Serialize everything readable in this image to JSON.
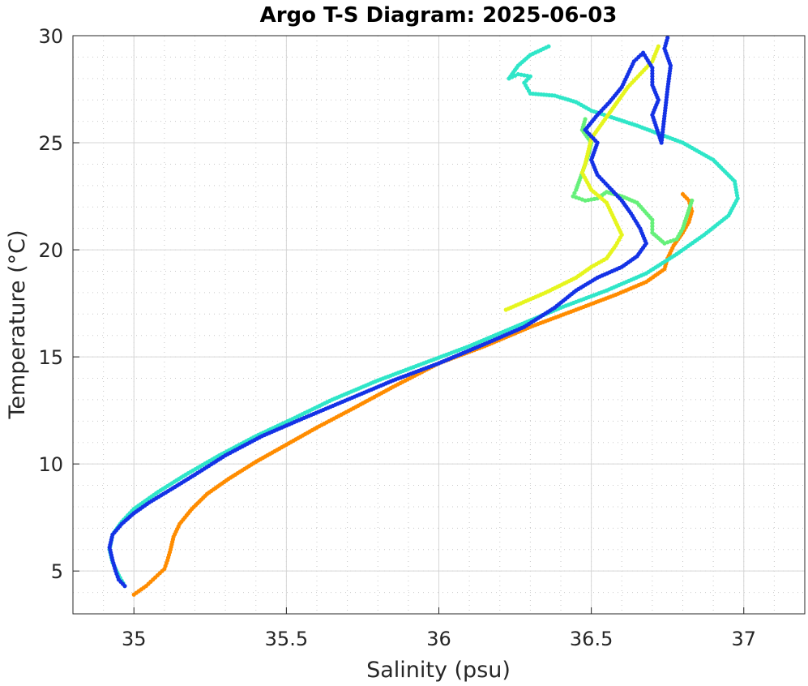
{
  "chart_data": {
    "type": "scatter",
    "title": "Argo T-S Diagram: 2025-06-03",
    "xlabel": "Salinity (psu)",
    "ylabel": "Temperature (°C)",
    "xlim": [
      34.8,
      37.2
    ],
    "ylim": [
      3,
      30
    ],
    "x_ticks": [
      35,
      35.5,
      36,
      36.5,
      37
    ],
    "x_tick_labels": [
      "35",
      "35.5",
      "36",
      "36.5",
      "37"
    ],
    "y_ticks": [
      5,
      10,
      15,
      20,
      25,
      30
    ],
    "y_tick_labels": [
      "5",
      "10",
      "15",
      "20",
      "25",
      "30"
    ],
    "x_minor_step": 0.1,
    "y_minor_step": 1,
    "grid": true,
    "minor_grid": true,
    "legend": "none",
    "series": [
      {
        "color": "#ff8c00",
        "points": [
          [
            35.0,
            3.9
          ],
          [
            35.04,
            4.3
          ],
          [
            35.07,
            4.7
          ],
          [
            35.1,
            5.1
          ],
          [
            35.11,
            5.5
          ],
          [
            35.12,
            6.0
          ],
          [
            35.13,
            6.6
          ],
          [
            35.15,
            7.2
          ],
          [
            35.19,
            7.9
          ],
          [
            35.24,
            8.6
          ],
          [
            35.31,
            9.3
          ],
          [
            35.4,
            10.1
          ],
          [
            35.5,
            10.9
          ],
          [
            35.6,
            11.7
          ],
          [
            35.72,
            12.6
          ],
          [
            35.85,
            13.6
          ],
          [
            36.0,
            14.7
          ],
          [
            36.15,
            15.5
          ],
          [
            36.3,
            16.4
          ],
          [
            36.45,
            17.2
          ],
          [
            36.58,
            17.9
          ],
          [
            36.68,
            18.5
          ],
          [
            36.74,
            19.1
          ],
          [
            36.75,
            19.6
          ],
          [
            36.77,
            20.2
          ],
          [
            36.8,
            20.8
          ],
          [
            36.82,
            21.3
          ],
          [
            36.83,
            21.8
          ],
          [
            36.82,
            22.3
          ],
          [
            36.8,
            22.6
          ]
        ]
      },
      {
        "color": "#2fe6c8",
        "points": [
          [
            34.97,
            4.3
          ],
          [
            34.95,
            4.8
          ],
          [
            34.93,
            5.4
          ],
          [
            34.92,
            6.0
          ],
          [
            34.93,
            6.7
          ],
          [
            34.96,
            7.3
          ],
          [
            35.0,
            7.9
          ],
          [
            35.08,
            8.7
          ],
          [
            35.17,
            9.5
          ],
          [
            35.28,
            10.4
          ],
          [
            35.4,
            11.3
          ],
          [
            35.52,
            12.1
          ],
          [
            35.65,
            13.0
          ],
          [
            35.8,
            13.9
          ],
          [
            35.95,
            14.7
          ],
          [
            36.1,
            15.5
          ],
          [
            36.25,
            16.4
          ],
          [
            36.4,
            17.3
          ],
          [
            36.55,
            18.1
          ],
          [
            36.68,
            18.9
          ],
          [
            36.78,
            19.8
          ],
          [
            36.87,
            20.7
          ],
          [
            36.95,
            21.6
          ],
          [
            36.98,
            22.4
          ],
          [
            36.97,
            23.2
          ],
          [
            36.9,
            24.2
          ],
          [
            36.8,
            25.0
          ],
          [
            36.65,
            25.8
          ],
          [
            36.5,
            26.5
          ],
          [
            36.45,
            26.9
          ],
          [
            36.38,
            27.2
          ],
          [
            36.3,
            27.3
          ],
          [
            36.28,
            27.8
          ],
          [
            36.3,
            28.1
          ],
          [
            36.26,
            28.2
          ],
          [
            36.23,
            28.0
          ],
          [
            36.26,
            28.6
          ],
          [
            36.3,
            29.1
          ],
          [
            36.36,
            29.5
          ]
        ]
      },
      {
        "color": "#66f07a",
        "points": [
          [
            36.48,
            26.1
          ],
          [
            36.47,
            25.6
          ],
          [
            36.5,
            25.0
          ],
          [
            36.49,
            24.4
          ],
          [
            36.47,
            23.6
          ],
          [
            36.45,
            22.8
          ],
          [
            36.44,
            22.5
          ],
          [
            36.48,
            22.3
          ],
          [
            36.52,
            22.4
          ],
          [
            36.55,
            22.7
          ],
          [
            36.6,
            22.5
          ],
          [
            36.65,
            22.2
          ],
          [
            36.7,
            21.4
          ],
          [
            36.7,
            20.8
          ],
          [
            36.74,
            20.3
          ],
          [
            36.78,
            20.5
          ],
          [
            36.8,
            21.0
          ],
          [
            36.83,
            22.3
          ]
        ]
      },
      {
        "color": "#e6f51e",
        "points": [
          [
            36.72,
            29.5
          ],
          [
            36.7,
            28.8
          ],
          [
            36.66,
            28.2
          ],
          [
            36.62,
            27.6
          ],
          [
            36.5,
            25.2
          ],
          [
            36.48,
            24.0
          ],
          [
            36.47,
            23.6
          ],
          [
            36.5,
            22.8
          ],
          [
            36.55,
            22.2
          ],
          [
            36.6,
            20.7
          ],
          [
            36.58,
            20.2
          ],
          [
            36.55,
            19.6
          ],
          [
            36.5,
            19.2
          ],
          [
            36.45,
            18.7
          ],
          [
            36.35,
            18.0
          ],
          [
            36.22,
            17.2
          ]
        ]
      },
      {
        "color": "#1432e6",
        "points": [
          [
            34.97,
            4.3
          ],
          [
            34.95,
            4.6
          ],
          [
            34.94,
            5.0
          ],
          [
            34.93,
            5.5
          ],
          [
            34.92,
            6.1
          ],
          [
            34.93,
            6.7
          ],
          [
            34.96,
            7.2
          ],
          [
            35.0,
            7.7
          ],
          [
            35.05,
            8.2
          ],
          [
            35.12,
            8.8
          ],
          [
            35.2,
            9.5
          ],
          [
            35.3,
            10.4
          ],
          [
            35.42,
            11.3
          ],
          [
            35.55,
            12.1
          ],
          [
            35.7,
            13.0
          ],
          [
            35.85,
            13.9
          ],
          [
            36.0,
            14.7
          ],
          [
            36.15,
            15.6
          ],
          [
            36.28,
            16.4
          ],
          [
            36.38,
            17.3
          ],
          [
            36.45,
            18.1
          ],
          [
            36.52,
            18.7
          ],
          [
            36.6,
            19.2
          ],
          [
            36.65,
            19.7
          ],
          [
            36.68,
            20.3
          ],
          [
            36.66,
            21.0
          ],
          [
            36.63,
            21.7
          ],
          [
            36.6,
            22.3
          ],
          [
            36.56,
            22.9
          ],
          [
            36.52,
            23.5
          ],
          [
            36.5,
            24.2
          ],
          [
            36.52,
            25.0
          ],
          [
            36.48,
            25.6
          ],
          [
            36.52,
            26.3
          ],
          [
            36.56,
            26.9
          ],
          [
            36.6,
            27.6
          ],
          [
            36.62,
            28.2
          ],
          [
            36.64,
            28.8
          ],
          [
            36.67,
            29.2
          ],
          [
            36.7,
            28.5
          ],
          [
            36.7,
            27.7
          ],
          [
            36.72,
            27.0
          ],
          [
            36.7,
            26.3
          ],
          [
            36.73,
            25.0
          ],
          [
            36.75,
            27.5
          ],
          [
            36.76,
            28.6
          ],
          [
            36.74,
            29.4
          ],
          [
            36.75,
            29.9
          ]
        ]
      }
    ]
  }
}
